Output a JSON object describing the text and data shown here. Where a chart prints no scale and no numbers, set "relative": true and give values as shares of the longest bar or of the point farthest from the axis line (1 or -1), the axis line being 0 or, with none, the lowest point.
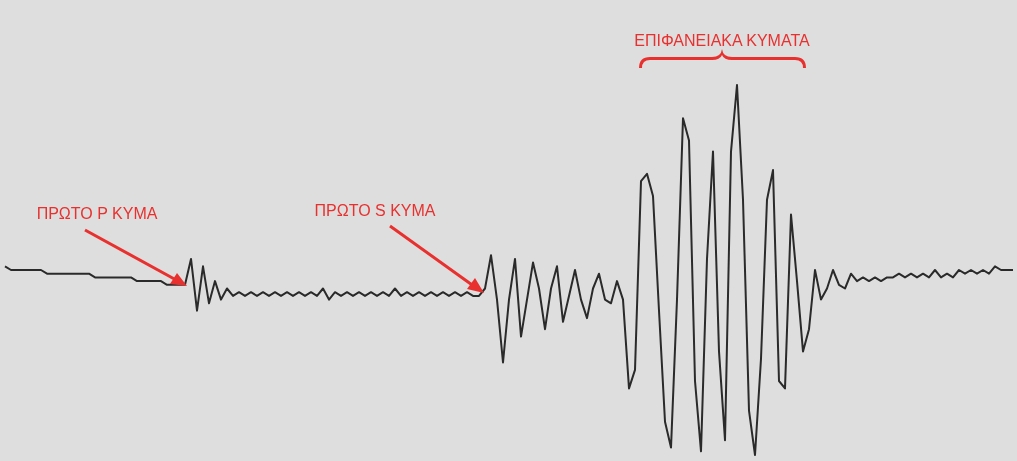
{
  "chart_data": {
    "type": "line",
    "relative": true,
    "marker": "none",
    "line_style": "solid",
    "categories": [
      null,
      null,
      null,
      null,
      null,
      null,
      null,
      null,
      null,
      null,
      null,
      null,
      null,
      null,
      null,
      null,
      null,
      null,
      null,
      null,
      null,
      null,
      null,
      null,
      null,
      null,
      null,
      null,
      null,
      null,
      null,
      null,
      null,
      null,
      null,
      null,
      null,
      null,
      null,
      null,
      null,
      null,
      null,
      null,
      null,
      null,
      null,
      null,
      null,
      null,
      null,
      null,
      null,
      null,
      null,
      null,
      null,
      null,
      null,
      null,
      null,
      null,
      null,
      null,
      null,
      null,
      null,
      null,
      null,
      null,
      null,
      null,
      null,
      null,
      null,
      null,
      null,
      null,
      null,
      null,
      null,
      null,
      null,
      null,
      null,
      null,
      null,
      null,
      null,
      null,
      null,
      null,
      null,
      null,
      null,
      null,
      null,
      null,
      null,
      null,
      null,
      null,
      null,
      null,
      null,
      null,
      null,
      null,
      null,
      null,
      null,
      null,
      null,
      null,
      null,
      null,
      null,
      null,
      null,
      null,
      null,
      null,
      null,
      null,
      null,
      null,
      null,
      null,
      null,
      null,
      null,
      null,
      null,
      null,
      null,
      null,
      null,
      null,
      null,
      null,
      null,
      null,
      null,
      null,
      null,
      null,
      null,
      null,
      null,
      null,
      null,
      null,
      null,
      null,
      null,
      null,
      null,
      null,
      null,
      null,
      null,
      null,
      null,
      null,
      null,
      null,
      null,
      null,
      null
    ],
    "series": [
      {
        "color": "#2a2a2a",
        "values": [
          0.51,
          0.5,
          0.5,
          0.5,
          0.5,
          0.5,
          0.5,
          0.49,
          0.49,
          0.49,
          0.49,
          0.49,
          0.49,
          0.49,
          0.49,
          0.48,
          0.48,
          0.48,
          0.48,
          0.48,
          0.48,
          0.48,
          0.47,
          0.47,
          0.47,
          0.47,
          0.47,
          0.46,
          0.46,
          0.46,
          0.46,
          0.53,
          0.39,
          0.51,
          0.41,
          0.47,
          0.42,
          0.45,
          0.43,
          0.44,
          0.43,
          0.44,
          0.43,
          0.44,
          0.43,
          0.44,
          0.43,
          0.44,
          0.43,
          0.44,
          0.43,
          0.44,
          0.43,
          0.45,
          0.42,
          0.44,
          0.43,
          0.44,
          0.43,
          0.44,
          0.43,
          0.44,
          0.43,
          0.44,
          0.43,
          0.45,
          0.43,
          0.44,
          0.43,
          0.44,
          0.43,
          0.44,
          0.43,
          0.44,
          0.43,
          0.44,
          0.43,
          0.44,
          0.43,
          0.43,
          0.45,
          0.54,
          0.42,
          0.25,
          0.42,
          0.53,
          0.32,
          0.42,
          0.52,
          0.45,
          0.34,
          0.45,
          0.51,
          0.36,
          0.43,
          0.5,
          0.42,
          0.37,
          0.45,
          0.49,
          0.42,
          0.41,
          0.47,
          0.42,
          0.18,
          0.23,
          0.74,
          0.76,
          0.7,
          0.39,
          0.09,
          0.02,
          0.42,
          0.91,
          0.85,
          0.2,
          0.01,
          0.53,
          0.82,
          0.28,
          0.04,
          0.82,
          1,
          0.69,
          0.12,
          0,
          0.26,
          0.69,
          0.77,
          0.2,
          0.18,
          0.65,
          0.47,
          0.28,
          0.34,
          0.5,
          0.42,
          0.45,
          0.5,
          0.46,
          0.45,
          0.49,
          0.47,
          0.48,
          0.47,
          0.48,
          0.47,
          0.48,
          0.48,
          0.49,
          0.48,
          0.49,
          0.48,
          0.49,
          0.48,
          0.5,
          0.48,
          0.49,
          0.48,
          0.5,
          0.49,
          0.5,
          0.49,
          0.5,
          0.49,
          0.51,
          0.5,
          0.5,
          0.5
        ]
      }
    ],
    "annotations": [
      "ΠΡΩΤΟ P ΚΥΜΑ",
      "ΠΡΩΤΟ S ΚΥΜΑ",
      "ΕΠΙΦΑΝΕΙΑΚΑ ΚΥΜΑΤΑ"
    ]
  }
}
